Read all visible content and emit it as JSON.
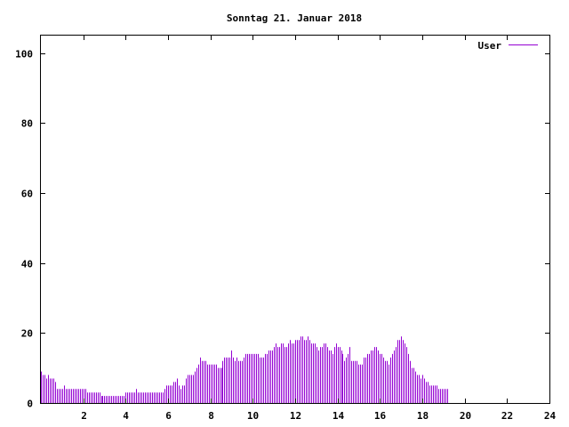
{
  "chart_data": {
    "type": "bar",
    "title": "Sonntag 21. Januar 2018",
    "xlabel": "",
    "ylabel": "",
    "xlim": [
      0,
      24
    ],
    "ylim": [
      0,
      105
    ],
    "xticks": [
      "2",
      "4",
      "6",
      "8",
      "10",
      "12",
      "14",
      "16",
      "18",
      "20",
      "22",
      "24"
    ],
    "yticks": [
      "0",
      "20",
      "40",
      "60",
      "80",
      "100"
    ],
    "grid": false,
    "legend_position": "top-right",
    "series": [
      {
        "name": "User",
        "color": "#9400d3",
        "sample_interval_hours": 0.0833,
        "values": [
          9,
          8,
          8,
          7,
          8,
          7,
          7,
          7,
          6,
          4,
          4,
          4,
          4,
          5,
          4,
          4,
          4,
          4,
          4,
          4,
          4,
          4,
          4,
          4,
          4,
          4,
          3,
          3,
          3,
          3,
          3,
          3,
          3,
          3,
          2,
          2,
          2,
          2,
          2,
          2,
          2,
          2,
          2,
          2,
          2,
          2,
          2,
          2,
          3,
          3,
          3,
          3,
          3,
          3,
          4,
          3,
          3,
          3,
          3,
          3,
          3,
          3,
          3,
          3,
          3,
          3,
          3,
          3,
          3,
          3,
          4,
          5,
          5,
          5,
          5,
          6,
          6,
          7,
          5,
          4,
          5,
          5,
          7,
          8,
          8,
          8,
          8,
          9,
          10,
          11,
          13,
          12,
          12,
          12,
          11,
          11,
          11,
          11,
          11,
          11,
          10,
          10,
          10,
          12,
          13,
          13,
          13,
          13,
          15,
          13,
          12,
          13,
          12,
          12,
          12,
          13,
          14,
          14,
          14,
          14,
          14,
          14,
          14,
          14,
          13,
          13,
          13,
          14,
          14,
          15,
          15,
          15,
          16,
          17,
          16,
          16,
          17,
          17,
          16,
          16,
          17,
          18,
          17,
          17,
          18,
          18,
          18,
          19,
          19,
          18,
          18,
          19,
          18,
          17,
          17,
          17,
          16,
          15,
          16,
          16,
          17,
          17,
          16,
          15,
          15,
          14,
          16,
          17,
          16,
          16,
          15,
          14,
          12,
          13,
          14,
          16,
          12,
          12,
          12,
          12,
          11,
          11,
          11,
          13,
          13,
          14,
          14,
          15,
          15,
          16,
          16,
          15,
          14,
          14,
          13,
          12,
          12,
          11,
          13,
          14,
          15,
          16,
          18,
          18,
          19,
          18,
          17,
          16,
          14,
          12,
          10,
          10,
          9,
          8,
          8,
          7,
          8,
          7,
          6,
          6,
          5,
          5,
          5,
          5,
          5,
          4,
          4,
          4,
          4,
          4,
          4
        ]
      }
    ]
  }
}
